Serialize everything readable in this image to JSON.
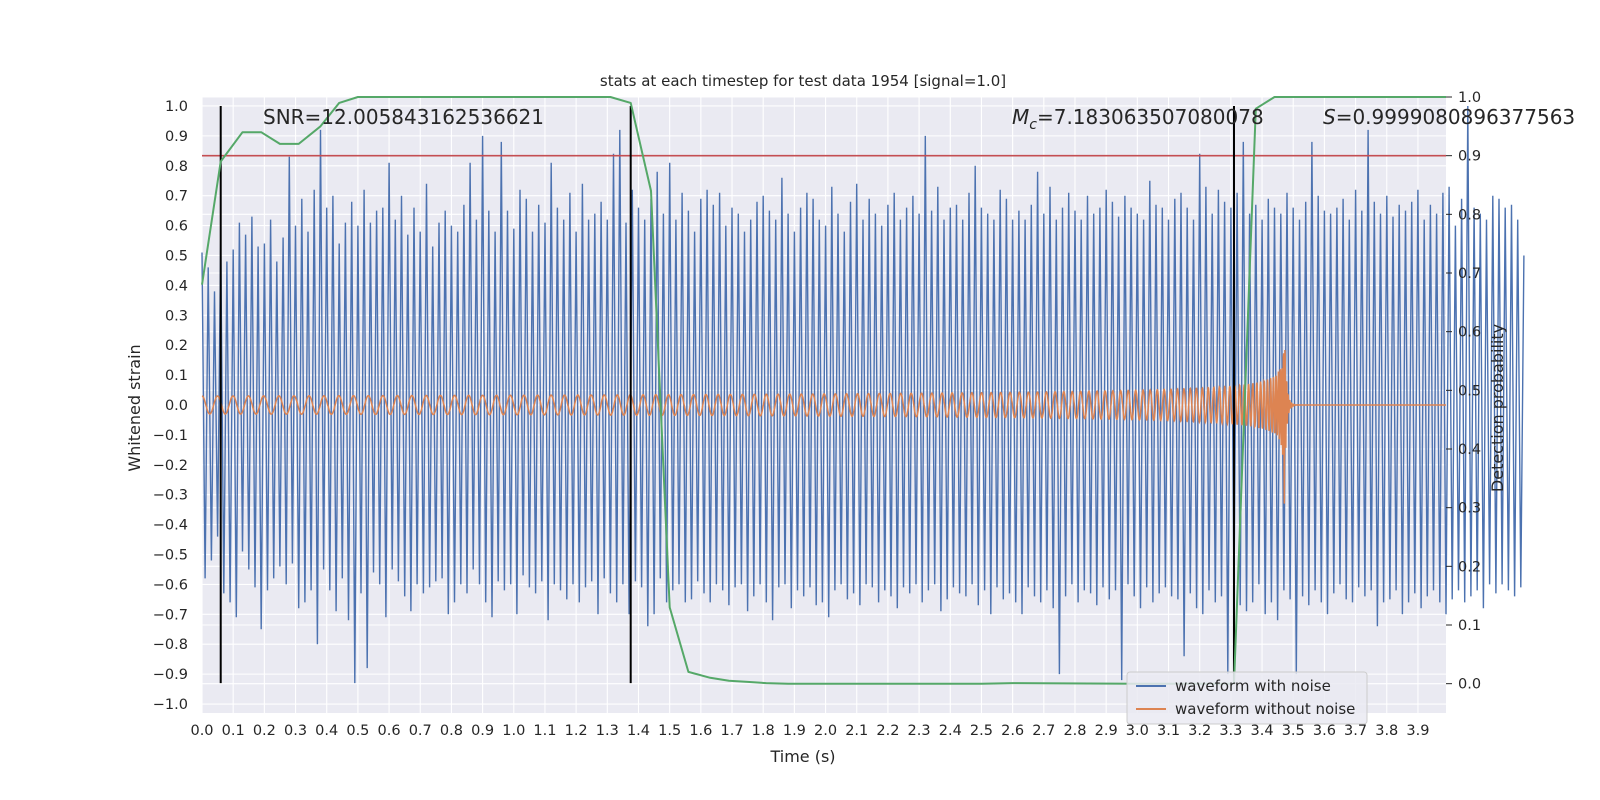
{
  "chart_data": {
    "type": "line",
    "title": "stats at each timestep for test data 1954 [signal=1.0]",
    "xlabel": "Time (s)",
    "ylabel": "Whitened strain",
    "y2label": "Detection probability",
    "xlim": [
      0.0,
      3.99
    ],
    "ylim": [
      -1.03,
      1.03
    ],
    "y2lim": [
      -0.05,
      1.0
    ],
    "xticks": [
      "0.0",
      "0.1",
      "0.2",
      "0.3",
      "0.4",
      "0.5",
      "0.6",
      "0.7",
      "0.8",
      "0.9",
      "1.0",
      "1.1",
      "1.2",
      "1.3",
      "1.4",
      "1.5",
      "1.6",
      "1.7",
      "1.8",
      "1.9",
      "2.0",
      "2.1",
      "2.2",
      "2.3",
      "2.4",
      "2.5",
      "2.6",
      "2.7",
      "2.8",
      "2.9",
      "3.0",
      "3.1",
      "3.2",
      "3.3",
      "3.4",
      "3.5",
      "3.6",
      "3.7",
      "3.8",
      "3.9"
    ],
    "yticks": [
      "1.0",
      "0.9",
      "0.8",
      "0.7",
      "0.6",
      "0.5",
      "0.4",
      "0.3",
      "0.2",
      "0.1",
      "0.0",
      "−0.1",
      "−0.2",
      "−0.3",
      "−0.4",
      "−0.5",
      "−0.6",
      "−0.7",
      "−0.8",
      "−0.9",
      "−1.0"
    ],
    "y2ticks": [
      "1.0",
      "0.9",
      "0.8",
      "0.7",
      "0.6",
      "0.5",
      "0.4",
      "0.3",
      "0.2",
      "0.1",
      "0.0"
    ],
    "annotations": {
      "snr": "SNR=12.005843162536621",
      "mc_symbol": "M",
      "mc_sub": "c",
      "mc_value": "=7.183063507080078",
      "s_symbol": "S",
      "s_value": "=0.9999080896377563"
    },
    "legend": {
      "location": "lower-right",
      "entries": [
        "waveform with noise",
        "waveform without noise"
      ]
    },
    "threshold": {
      "value": 0.9,
      "axis": "right",
      "color": "#c44e52"
    },
    "vertical_lines": [
      0.06,
      1.375,
      3.31
    ],
    "colors": {
      "noise": "#4c72b0",
      "clean": "#dd8452",
      "probability": "#55a868",
      "vlines": "#000000"
    },
    "series": [
      {
        "name": "Detection probability",
        "axis": "right",
        "x": [
          0.0,
          0.06,
          0.13,
          0.19,
          0.25,
          0.31,
          0.38,
          0.44,
          0.5,
          0.56,
          0.63,
          0.69,
          0.75,
          0.81,
          0.88,
          0.94,
          1.0,
          1.06,
          1.13,
          1.19,
          1.25,
          1.31,
          1.375,
          1.44,
          1.5,
          1.56,
          1.63,
          1.69,
          1.75,
          1.81,
          1.88,
          1.94,
          2.0,
          2.5,
          2.6,
          3.0,
          3.25,
          3.31,
          3.38,
          3.44,
          3.5,
          3.6,
          3.7,
          3.8,
          3.9,
          3.99
        ],
        "values": [
          0.68,
          0.89,
          0.94,
          0.94,
          0.92,
          0.92,
          0.95,
          0.99,
          1.0,
          1.0,
          1.0,
          1.0,
          1.0,
          1.0,
          1.0,
          1.0,
          1.0,
          1.0,
          1.0,
          1.0,
          1.0,
          1.0,
          0.99,
          0.84,
          0.13,
          0.02,
          0.01,
          0.005,
          0.003,
          0.001,
          0.0,
          0.0,
          0.0,
          0.0,
          0.001,
          0.0,
          0.0,
          0.0,
          0.98,
          1.0,
          1.0,
          1.0,
          1.0,
          1.0,
          1.0,
          1.0
        ]
      },
      {
        "name": "waveform with noise",
        "axis": "left",
        "description": "whitened noisy strain, sampled every 0.01 s",
        "x_start": 0.0,
        "x_step": 0.01,
        "values": [
          0.51,
          -0.58,
          0.46,
          -0.52,
          0.38,
          -0.44,
          0.55,
          -0.63,
          0.48,
          -0.66,
          0.52,
          -0.71,
          0.61,
          -0.49,
          0.57,
          -0.55,
          0.63,
          -0.61,
          0.53,
          -0.75,
          0.54,
          -0.62,
          0.62,
          -0.58,
          0.48,
          -0.54,
          0.56,
          -0.6,
          0.83,
          -0.53,
          0.6,
          -0.68,
          0.69,
          -0.66,
          0.58,
          -0.62,
          0.72,
          -0.8,
          0.92,
          -0.55,
          0.66,
          -0.62,
          0.7,
          -0.69,
          0.54,
          -0.58,
          0.61,
          -0.72,
          0.68,
          -0.93,
          0.6,
          -0.63,
          0.72,
          -0.88,
          0.61,
          -0.56,
          0.65,
          -0.6,
          0.66,
          -0.71,
          0.81,
          -0.55,
          0.62,
          -0.59,
          0.7,
          -0.64,
          0.57,
          -0.69,
          0.66,
          -0.6,
          0.58,
          -0.63,
          0.74,
          -0.61,
          0.53,
          -0.59,
          0.61,
          -0.58,
          0.65,
          -0.7,
          0.6,
          -0.66,
          0.58,
          -0.6,
          0.67,
          -0.63,
          0.81,
          -0.55,
          0.62,
          -0.6,
          0.9,
          -0.66,
          0.65,
          -0.71,
          0.58,
          -0.59,
          0.88,
          -0.62,
          0.65,
          -0.6,
          0.59,
          -0.7,
          0.72,
          -0.57,
          0.69,
          -0.61,
          0.58,
          -0.63,
          0.67,
          -0.59,
          0.61,
          -0.72,
          0.81,
          -0.6,
          0.66,
          -0.62,
          0.62,
          -0.65,
          0.71,
          -0.6,
          0.58,
          -0.66,
          0.74,
          -0.61,
          0.62,
          -0.59,
          0.64,
          -0.7,
          0.68,
          -0.58,
          0.62,
          -0.63,
          0.84,
          -0.66,
          0.92,
          -0.6,
          0.61,
          -0.7,
          0.72,
          -0.59,
          0.66,
          -0.61,
          0.62,
          -0.74,
          0.69,
          -0.7,
          0.78,
          -0.58,
          0.64,
          -0.66,
          0.81,
          -0.62,
          0.62,
          -0.6,
          0.71,
          -0.66,
          0.65,
          -0.65,
          0.58,
          -0.59,
          0.69,
          -0.63,
          0.72,
          -0.66,
          0.67,
          -0.6,
          0.71,
          -0.62,
          0.6,
          -0.67,
          0.66,
          -0.61,
          0.64,
          -0.6,
          0.58,
          -0.69,
          0.62,
          -0.64,
          0.68,
          -0.6,
          0.7,
          -0.66,
          0.65,
          -0.72,
          0.62,
          -0.61,
          0.76,
          -0.6,
          0.64,
          -0.68,
          0.58,
          -0.62,
          0.66,
          -0.64,
          0.71,
          -0.61,
          0.69,
          -0.67,
          0.62,
          -0.66,
          0.6,
          -0.71,
          0.73,
          -0.62,
          0.64,
          -0.6,
          0.58,
          -0.65,
          0.68,
          -0.63,
          0.74,
          -0.67,
          0.62,
          -0.6,
          0.69,
          -0.61,
          0.64,
          -0.66,
          0.6,
          -0.62,
          0.67,
          -0.64,
          0.71,
          -0.68,
          0.62,
          -0.61,
          0.66,
          -0.63,
          0.7,
          -0.6,
          0.64,
          -0.66,
          0.9,
          -0.62,
          0.65,
          -0.6,
          0.73,
          -0.69,
          0.62,
          -0.65,
          0.66,
          -0.61,
          0.67,
          -0.63,
          0.62,
          -0.64,
          0.71,
          -0.6,
          0.8,
          -0.67,
          0.66,
          -0.62,
          0.64,
          -0.7,
          0.62,
          -0.61,
          0.72,
          -0.65,
          0.69,
          -0.63,
          0.62,
          -0.66,
          0.65,
          -0.7,
          0.62,
          -0.61,
          0.67,
          -0.64,
          0.78,
          -0.66,
          0.64,
          -0.62,
          0.73,
          -0.68,
          0.62,
          -0.9,
          0.66,
          -0.64,
          0.71,
          -0.6,
          0.65,
          -0.66,
          0.62,
          -0.62,
          0.7,
          -0.63,
          0.64,
          -0.67,
          0.66,
          -0.61,
          0.72,
          -0.65,
          0.68,
          -0.62,
          0.63,
          -0.92,
          0.7,
          -0.6,
          0.66,
          -0.64,
          0.64,
          -0.68,
          0.62,
          -0.61,
          0.75,
          -0.66,
          0.67,
          -0.63,
          0.66,
          -0.61,
          0.62,
          -0.64,
          0.69,
          -0.65,
          0.71,
          -0.84,
          0.66,
          -0.63,
          0.62,
          -0.68,
          0.84,
          -0.7,
          0.73,
          -0.62,
          0.64,
          -0.66,
          0.72,
          -0.64,
          0.68,
          -0.9,
          0.66,
          -0.62,
          0.71,
          -0.67,
          0.88,
          -0.69,
          0.64,
          -0.66,
          0.67,
          -0.6,
          0.62,
          -0.7,
          0.69,
          -0.66,
          0.66,
          -0.72,
          0.64,
          -0.62,
          0.71,
          -0.65,
          0.66,
          -0.9,
          0.62,
          -0.64,
          0.68,
          -0.67,
          0.88,
          -0.62,
          0.7,
          -0.66,
          0.65,
          -0.7,
          0.64,
          -0.63,
          0.66,
          -0.6,
          0.69,
          -0.65,
          0.62,
          -0.66,
          0.72,
          -0.61,
          0.65,
          -0.64,
          0.92,
          -0.62,
          0.68,
          -0.74,
          0.64,
          -0.66,
          0.7,
          -0.65,
          0.63,
          -0.62,
          0.67,
          -0.7,
          0.65,
          -0.66,
          0.68,
          -0.63,
          0.72,
          -0.68,
          0.62,
          -0.64,
          0.67,
          -0.62,
          0.64,
          -0.66,
          0.71,
          -0.7,
          0.73,
          -0.65,
          0.6,
          -0.62,
          0.69,
          -0.66,
          1.0,
          -0.64,
          0.66,
          -0.62,
          0.64,
          -0.68,
          0.62,
          -0.6,
          0.7,
          -0.63,
          0.69,
          -0.6,
          0.66,
          -0.62,
          0.67,
          -0.64,
          0.62,
          -0.61,
          0.5
        ]
      },
      {
        "name": "waveform without noise",
        "axis": "left",
        "description": "chirp template; amplitude grows until merger near t=3.47 s, then ringdown to zero",
        "amplitude_start": 0.03,
        "amplitude_peak": 0.41,
        "t_merger": 3.47,
        "freq_start_hz": 20,
        "freq_end_hz": 200
      }
    ]
  }
}
